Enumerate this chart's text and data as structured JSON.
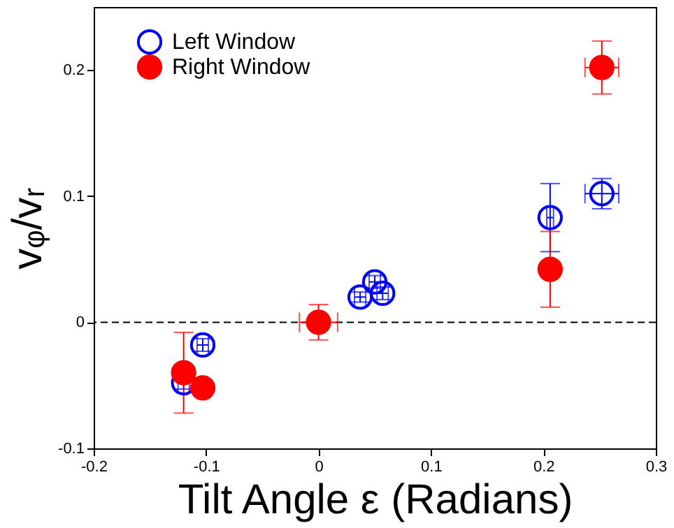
{
  "chart_data": {
    "type": "scatter",
    "xlabel": "Tilt Angle ε (Radians)",
    "ylabel": "vᵩ/vᵣ",
    "xlim": [
      -0.2,
      0.3
    ],
    "ylim": [
      -0.1,
      0.25
    ],
    "xticks": [
      {
        "value": -0.2,
        "label": "-0.2"
      },
      {
        "value": -0.1,
        "label": "-0.1"
      },
      0,
      {
        "value": 0.1,
        "label": "0.1"
      },
      {
        "value": 0.2,
        "label": "0.2"
      },
      {
        "value": 0.3,
        "label": "0.3"
      }
    ],
    "yticks": [
      {
        "value": -0.1,
        "label": "-0.1"
      },
      0,
      {
        "value": 0.1,
        "label": "0.1"
      },
      {
        "value": 0.2,
        "label": "0.2"
      }
    ],
    "grid": false,
    "legend": "top left",
    "marker": "circle",
    "ref_lines": [
      {
        "axis": "y",
        "value": 0,
        "line_style": "dashed",
        "color": "#000000"
      }
    ],
    "series": [
      {
        "name": "Left Window",
        "color": "#0000ff",
        "x": [
          -0.12,
          -0.103,
          0.037,
          0.05,
          0.057,
          0.206,
          0.252
        ],
        "values": [
          -0.048,
          -0.018,
          0.02,
          0.032,
          0.023,
          0.083,
          0.102
        ],
        "errors": [
          0.005,
          0.005,
          0.004,
          0.005,
          0.005,
          0.027,
          0.012
        ],
        "xerrors": [
          0.005,
          0.005,
          0.005,
          0.005,
          0.005,
          0.003,
          0.015
        ]
      },
      {
        "name": "Right Window",
        "color": "#ff0000",
        "x": [
          -0.12,
          -0.103,
          0,
          0.206,
          0.252
        ],
        "values": [
          -0.04,
          -0.052,
          0,
          0.042,
          0.202
        ],
        "errors": [
          0.032,
          null,
          0.014,
          0.03,
          0.021
        ],
        "xerrors": [
          null,
          null,
          0.017,
          null,
          0.015
        ]
      }
    ]
  }
}
